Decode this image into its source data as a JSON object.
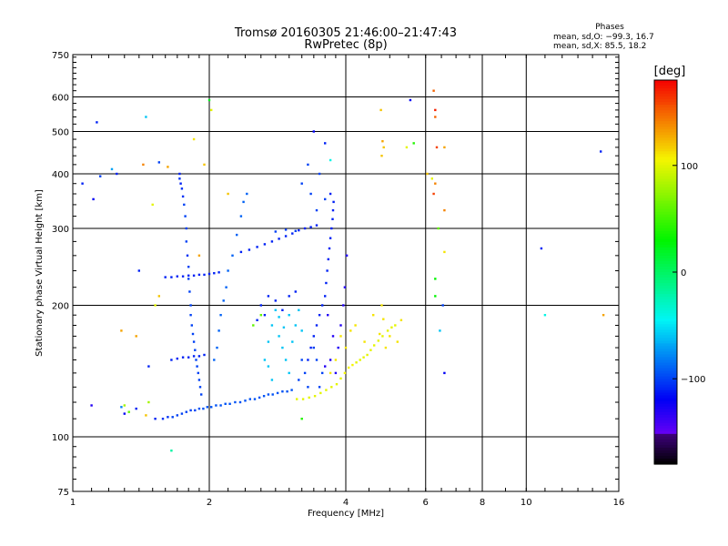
{
  "header": {
    "title_line1": "Tromsø 20160305 21:46:00–21:47:43",
    "title_line2": "RwPretec (8p)"
  },
  "stats": {
    "heading": "Phases",
    "line_o": "mean, sd,O: −99.3, 16.7",
    "line_x": "mean, sd,X:  85.5, 18.2"
  },
  "colorbar": {
    "unit_label": "[deg]",
    "range": [
      -180,
      180
    ],
    "ticks": [
      {
        "value": 100,
        "label": "100"
      },
      {
        "value": 0,
        "label": "0"
      },
      {
        "value": -100,
        "label": "−100"
      }
    ]
  },
  "chart_data": {
    "type": "scatter",
    "xlabel": "Frequency [MHz]",
    "ylabel": "Stationary phase Virtual Height [km]",
    "x_scale": "log2",
    "y_scale": "log",
    "xlim": [
      1,
      16
    ],
    "ylim": [
      75,
      750
    ],
    "grid": true,
    "xticks": [
      {
        "value": 1,
        "label": "1"
      },
      {
        "value": 2,
        "label": "2"
      },
      {
        "value": 4,
        "label": "4"
      },
      {
        "value": 6,
        "label": "6"
      },
      {
        "value": 8,
        "label": "8"
      },
      {
        "value": 10,
        "label": "10"
      },
      {
        "value": 16,
        "label": "16"
      }
    ],
    "yticks": [
      {
        "value": 75,
        "label": "75"
      },
      {
        "value": 100,
        "label": "100"
      },
      {
        "value": 200,
        "label": "200"
      },
      {
        "value": 300,
        "label": "300"
      },
      {
        "value": 400,
        "label": "400"
      },
      {
        "value": 500,
        "label": "500"
      },
      {
        "value": 600,
        "label": "600"
      },
      {
        "value": 750,
        "label": "750"
      }
    ],
    "color_by": "phase_deg",
    "points": [
      [
        1.05,
        380,
        -110
      ],
      [
        1.13,
        525,
        -110
      ],
      [
        1.15,
        395,
        -100
      ],
      [
        1.22,
        410,
        -70
      ],
      [
        1.45,
        540,
        -60
      ],
      [
        1.62,
        415,
        130
      ],
      [
        1.11,
        350,
        -120
      ],
      [
        1.1,
        118,
        -130
      ],
      [
        1.28,
        117,
        -80
      ],
      [
        1.3,
        113,
        -120
      ],
      [
        1.38,
        116,
        -110
      ],
      [
        1.45,
        112,
        120
      ],
      [
        1.47,
        120,
        80
      ],
      [
        1.3,
        118,
        80
      ],
      [
        1.33,
        114,
        60
      ],
      [
        1.52,
        110,
        -110
      ],
      [
        1.58,
        110,
        -105
      ],
      [
        1.62,
        111,
        -105
      ],
      [
        1.66,
        111,
        -100
      ],
      [
        1.7,
        112,
        -100
      ],
      [
        1.74,
        113,
        -100
      ],
      [
        1.78,
        114,
        -100
      ],
      [
        1.82,
        115,
        -100
      ],
      [
        1.86,
        115,
        -100
      ],
      [
        1.9,
        116,
        -95
      ],
      [
        1.94,
        116,
        -95
      ],
      [
        1.98,
        117,
        -95
      ],
      [
        2.02,
        117,
        -95
      ],
      [
        2.07,
        118,
        -95
      ],
      [
        2.12,
        118,
        -95
      ],
      [
        2.17,
        119,
        -95
      ],
      [
        2.22,
        119,
        -95
      ],
      [
        2.28,
        120,
        -95
      ],
      [
        2.34,
        120,
        -95
      ],
      [
        2.4,
        121,
        -95
      ],
      [
        2.46,
        122,
        -95
      ],
      [
        2.52,
        122,
        -95
      ],
      [
        2.58,
        123,
        -95
      ],
      [
        2.64,
        124,
        -95
      ],
      [
        2.7,
        125,
        -95
      ],
      [
        2.76,
        125,
        -95
      ],
      [
        2.83,
        126,
        -95
      ],
      [
        2.9,
        127,
        -95
      ],
      [
        2.97,
        127,
        -95
      ],
      [
        3.04,
        128,
        -95
      ],
      [
        3.12,
        122,
        100
      ],
      [
        3.22,
        122,
        100
      ],
      [
        3.32,
        123,
        100
      ],
      [
        3.42,
        124,
        100
      ],
      [
        3.52,
        126,
        100
      ],
      [
        3.62,
        128,
        100
      ],
      [
        3.72,
        130,
        100
      ],
      [
        3.82,
        132,
        100
      ],
      [
        3.9,
        136,
        100
      ],
      [
        3.98,
        140,
        105
      ],
      [
        4.06,
        144,
        105
      ],
      [
        4.14,
        146,
        105
      ],
      [
        4.22,
        148,
        100
      ],
      [
        4.3,
        150,
        100
      ],
      [
        4.38,
        152,
        100
      ],
      [
        4.46,
        154,
        100
      ],
      [
        4.54,
        158,
        100
      ],
      [
        4.62,
        162,
        100
      ],
      [
        4.72,
        166,
        100
      ],
      [
        4.82,
        170,
        100
      ],
      [
        4.95,
        175,
        100
      ],
      [
        5.05,
        178,
        100
      ],
      [
        5.14,
        180,
        100
      ],
      [
        4.2,
        180,
        110
      ],
      [
        4.4,
        165,
        110
      ],
      [
        4.6,
        190,
        110
      ],
      [
        4.8,
        200,
        110
      ],
      [
        4.84,
        186,
        110
      ],
      [
        4.75,
        172,
        110
      ],
      [
        4.9,
        160,
        110
      ],
      [
        5.0,
        170,
        110
      ],
      [
        5.2,
        165,
        110
      ],
      [
        5.3,
        185,
        110
      ],
      [
        3.9,
        170,
        110
      ],
      [
        4.0,
        160,
        110
      ],
      [
        4.1,
        175,
        110
      ],
      [
        3.7,
        140,
        110
      ],
      [
        3.8,
        150,
        110
      ],
      [
        4.8,
        440,
        120
      ],
      [
        4.85,
        460,
        120
      ],
      [
        4.82,
        475,
        130
      ],
      [
        4.78,
        560,
        120
      ],
      [
        5.45,
        460,
        100
      ],
      [
        6.3,
        560,
        170
      ],
      [
        6.3,
        540,
        150
      ],
      [
        6.25,
        620,
        150
      ],
      [
        6.35,
        460,
        160
      ],
      [
        6.3,
        380,
        140
      ],
      [
        6.25,
        360,
        160
      ],
      [
        6.6,
        460,
        130
      ],
      [
        6.6,
        330,
        140
      ],
      [
        6.6,
        265,
        110
      ],
      [
        6.3,
        230,
        30
      ],
      [
        6.3,
        210,
        30
      ],
      [
        6.55,
        200,
        -100
      ],
      [
        6.6,
        140,
        -120
      ],
      [
        6.45,
        175,
        -60
      ],
      [
        1.72,
        400,
        -110
      ],
      [
        1.72,
        390,
        -105
      ],
      [
        1.73,
        380,
        -110
      ],
      [
        1.74,
        370,
        -105
      ],
      [
        1.75,
        355,
        -105
      ],
      [
        1.76,
        340,
        -100
      ],
      [
        1.77,
        320,
        -100
      ],
      [
        1.78,
        300,
        -100
      ],
      [
        1.78,
        280,
        -100
      ],
      [
        1.79,
        260,
        -105
      ],
      [
        1.8,
        245,
        -100
      ],
      [
        1.8,
        230,
        -100
      ],
      [
        1.81,
        215,
        -100
      ],
      [
        1.82,
        200,
        -100
      ],
      [
        1.82,
        190,
        -100
      ],
      [
        1.83,
        180,
        -100
      ],
      [
        1.84,
        172,
        -100
      ],
      [
        1.85,
        165,
        -100
      ],
      [
        1.86,
        158,
        -100
      ],
      [
        1.87,
        150,
        -100
      ],
      [
        1.88,
        145,
        -100
      ],
      [
        1.89,
        140,
        -100
      ],
      [
        1.9,
        135,
        -100
      ],
      [
        1.91,
        130,
        -100
      ],
      [
        1.92,
        125,
        -100
      ],
      [
        1.65,
        150,
        -110
      ],
      [
        1.7,
        151,
        -110
      ],
      [
        1.75,
        152,
        -110
      ],
      [
        1.8,
        152,
        -110
      ],
      [
        1.85,
        153,
        -110
      ],
      [
        1.9,
        153,
        -110
      ],
      [
        1.95,
        154,
        -110
      ],
      [
        1.6,
        232,
        -110
      ],
      [
        1.65,
        232,
        -110
      ],
      [
        1.7,
        233,
        -110
      ],
      [
        1.75,
        233,
        -110
      ],
      [
        1.8,
        234,
        -110
      ],
      [
        1.85,
        234,
        -110
      ],
      [
        1.9,
        235,
        -110
      ],
      [
        1.95,
        235,
        -110
      ],
      [
        2.0,
        236,
        -110
      ],
      [
        2.05,
        237,
        -110
      ],
      [
        2.1,
        238,
        -110
      ],
      [
        2.35,
        265,
        -110
      ],
      [
        2.45,
        268,
        -110
      ],
      [
        2.55,
        272,
        -110
      ],
      [
        2.65,
        276,
        -110
      ],
      [
        2.75,
        280,
        -110
      ],
      [
        2.85,
        284,
        -110
      ],
      [
        2.95,
        288,
        -110
      ],
      [
        3.05,
        292,
        -110
      ],
      [
        3.15,
        297,
        -110
      ],
      [
        3.25,
        300,
        -110
      ],
      [
        3.35,
        302,
        -110
      ],
      [
        3.45,
        305,
        -110
      ],
      [
        2.8,
        295,
        -100
      ],
      [
        2.95,
        298,
        -100
      ],
      [
        3.1,
        296,
        -100
      ],
      [
        2.05,
        150,
        -90
      ],
      [
        2.08,
        160,
        -90
      ],
      [
        2.1,
        175,
        -90
      ],
      [
        2.12,
        190,
        -90
      ],
      [
        2.15,
        205,
        -90
      ],
      [
        2.18,
        220,
        -90
      ],
      [
        2.2,
        240,
        -90
      ],
      [
        2.25,
        260,
        -90
      ],
      [
        2.3,
        290,
        -90
      ],
      [
        2.35,
        320,
        -90
      ],
      [
        2.38,
        345,
        -90
      ],
      [
        2.42,
        360,
        -90
      ],
      [
        2.65,
        150,
        -60
      ],
      [
        2.7,
        165,
        -60
      ],
      [
        2.75,
        180,
        -60
      ],
      [
        2.8,
        195,
        -60
      ],
      [
        2.85,
        170,
        -60
      ],
      [
        2.9,
        160,
        -60
      ],
      [
        2.95,
        150,
        -60
      ],
      [
        3.0,
        140,
        -60
      ],
      [
        3.05,
        165,
        -60
      ],
      [
        3.1,
        180,
        -60
      ],
      [
        3.15,
        195,
        -60
      ],
      [
        3.2,
        175,
        -60
      ],
      [
        2.7,
        145,
        -60
      ],
      [
        2.75,
        135,
        -60
      ],
      [
        2.85,
        188,
        -60
      ],
      [
        2.92,
        178,
        -60
      ],
      [
        3.0,
        190,
        -60
      ],
      [
        2.6,
        200,
        -110
      ],
      [
        2.7,
        210,
        -110
      ],
      [
        2.8,
        205,
        -110
      ],
      [
        2.9,
        195,
        -110
      ],
      [
        3.0,
        210,
        -110
      ],
      [
        3.1,
        215,
        -110
      ],
      [
        2.65,
        190,
        -110
      ],
      [
        2.55,
        185,
        -110
      ],
      [
        3.3,
        150,
        -110
      ],
      [
        3.35,
        160,
        -110
      ],
      [
        3.4,
        170,
        -110
      ],
      [
        3.45,
        180,
        -110
      ],
      [
        3.5,
        190,
        -110
      ],
      [
        3.55,
        200,
        -110
      ],
      [
        3.6,
        210,
        -110
      ],
      [
        3.62,
        225,
        -110
      ],
      [
        3.64,
        240,
        -110
      ],
      [
        3.66,
        255,
        -110
      ],
      [
        3.68,
        270,
        -110
      ],
      [
        3.7,
        285,
        -110
      ],
      [
        3.72,
        300,
        -110
      ],
      [
        3.74,
        315,
        -110
      ],
      [
        3.75,
        330,
        -110
      ],
      [
        3.76,
        345,
        -110
      ],
      [
        3.7,
        360,
        -110
      ],
      [
        3.8,
        140,
        -130
      ],
      [
        3.85,
        160,
        -130
      ],
      [
        3.9,
        180,
        -130
      ],
      [
        3.95,
        200,
        -130
      ],
      [
        3.98,
        220,
        -130
      ],
      [
        4.02,
        260,
        -130
      ],
      [
        3.7,
        150,
        -130
      ],
      [
        3.75,
        170,
        -130
      ],
      [
        3.65,
        190,
        -130
      ],
      [
        3.6,
        145,
        -130
      ],
      [
        3.5,
        130,
        -100
      ],
      [
        3.55,
        140,
        -100
      ],
      [
        3.45,
        150,
        -100
      ],
      [
        3.4,
        160,
        -100
      ],
      [
        3.2,
        150,
        -100
      ],
      [
        3.25,
        140,
        -100
      ],
      [
        3.15,
        135,
        -100
      ],
      [
        3.3,
        130,
        -100
      ],
      [
        3.2,
        380,
        -100
      ],
      [
        3.3,
        420,
        -100
      ],
      [
        3.6,
        470,
        -110
      ],
      [
        3.4,
        500,
        -120
      ],
      [
        3.7,
        430,
        -40
      ],
      [
        3.45,
        330,
        -100
      ],
      [
        3.35,
        360,
        -100
      ],
      [
        3.5,
        400,
        -100
      ],
      [
        3.6,
        350,
        -100
      ],
      [
        2.2,
        360,
        120
      ],
      [
        1.95,
        420,
        120
      ],
      [
        1.9,
        260,
        130
      ],
      [
        1.55,
        210,
        120
      ],
      [
        1.5,
        340,
        100
      ],
      [
        1.38,
        170,
        130
      ],
      [
        1.28,
        175,
        130
      ],
      [
        1.52,
        200,
        100
      ],
      [
        2.0,
        590,
        20
      ],
      [
        2.02,
        560,
        100
      ],
      [
        1.85,
        480,
        110
      ],
      [
        2.6,
        190,
        60
      ],
      [
        2.5,
        180,
        60
      ],
      [
        5.55,
        590,
        -120
      ],
      [
        5.65,
        470,
        40
      ],
      [
        6.05,
        400,
        120
      ],
      [
        6.2,
        390,
        100
      ],
      [
        6.4,
        300,
        60
      ],
      [
        10.8,
        270,
        -110
      ],
      [
        11.0,
        190,
        -40
      ],
      [
        14.6,
        450,
        -110
      ],
      [
        14.8,
        190,
        130
      ],
      [
        1.25,
        400,
        -110
      ],
      [
        1.55,
        425,
        -100
      ],
      [
        1.43,
        420,
        140
      ],
      [
        3.2,
        110,
        40
      ],
      [
        1.65,
        93,
        -20
      ],
      [
        1.4,
        240,
        -110
      ],
      [
        1.47,
        145,
        -110
      ]
    ]
  }
}
